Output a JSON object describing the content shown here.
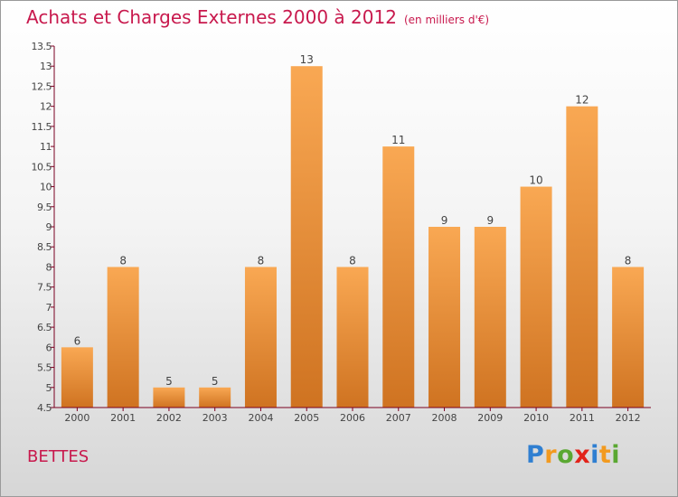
{
  "title": "Achats et Charges Externes 2000 à 2012",
  "unit": "(en milliers d'€)",
  "commune": "BETTES",
  "brand": {
    "letters": [
      "P",
      "r",
      "o",
      "x",
      "i",
      "t",
      "i"
    ],
    "colors": [
      "#2f7fd1",
      "#f29a1f",
      "#5aa832",
      "#e2231a",
      "#2f7fd1",
      "#f29a1f",
      "#5aa832"
    ]
  },
  "colors": {
    "bar_top": "#f9a853",
    "bar_bottom": "#cf7321",
    "title": "#c8194d",
    "axis": "#7a0021"
  },
  "chart_data": {
    "type": "bar",
    "title": "Achats et Charges Externes 2000 à 2012",
    "xlabel": "",
    "ylabel": "en milliers d'€",
    "categories": [
      "2000",
      "2001",
      "2002",
      "2003",
      "2004",
      "2005",
      "2006",
      "2007",
      "2008",
      "2009",
      "2010",
      "2011",
      "2012"
    ],
    "values": [
      6,
      8,
      5,
      5,
      8,
      13,
      8,
      11,
      9,
      9,
      10,
      12,
      8
    ],
    "ylim": [
      4.5,
      13.5
    ],
    "yticks": [
      "4.5",
      "5",
      "5.5",
      "6",
      "6.5",
      "7",
      "7.5",
      "8",
      "8.5",
      "9",
      "9.5",
      "10",
      "10.5",
      "11",
      "11.5",
      "12",
      "12.5",
      "13",
      "13.5"
    ],
    "grid": false,
    "legend": "none"
  }
}
